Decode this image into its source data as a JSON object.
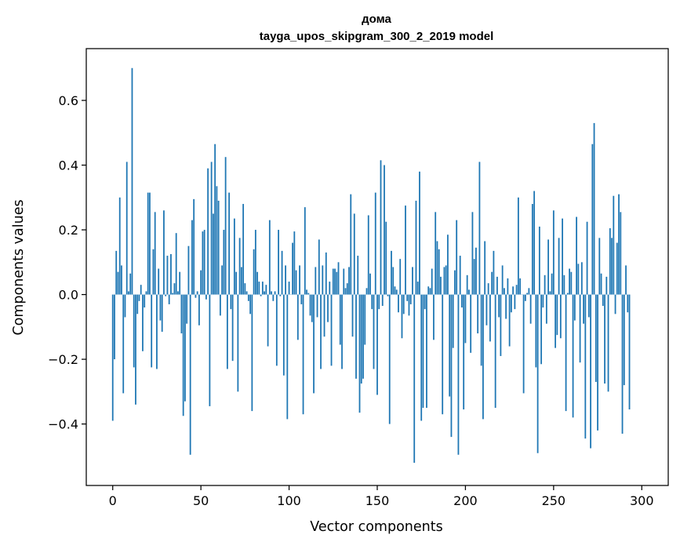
{
  "chart_data": {
    "type": "bar",
    "title": "дома",
    "subtitle": "tayga_upos_skipgram_300_2_2019 model",
    "xlabel": "Vector components",
    "ylabel": "Components values",
    "xlim": [
      -15,
      315
    ],
    "ylim": [
      -0.59,
      0.76
    ],
    "xticks": [
      0,
      50,
      100,
      150,
      200,
      250,
      300
    ],
    "yticks": [
      -0.4,
      -0.2,
      0.0,
      0.2,
      0.4,
      0.6
    ],
    "ytick_labels": [
      "−0.4",
      "−0.2",
      "0.0",
      "0.2",
      "0.4",
      "0.6"
    ],
    "xtick_labels": [
      "0",
      "50",
      "100",
      "150",
      "200",
      "250",
      "300"
    ],
    "bar_color": "#1f77b4",
    "grid": false,
    "x_start": 0,
    "values": [
      -0.39,
      -0.2,
      0.135,
      0.07,
      0.3,
      0.09,
      -0.305,
      -0.07,
      0.41,
      0.01,
      0.065,
      0.7,
      -0.225,
      -0.34,
      -0.06,
      -0.02,
      0.03,
      -0.175,
      -0.04,
      0.01,
      0.315,
      0.315,
      -0.225,
      0.14,
      0.255,
      -0.23,
      0.08,
      -0.08,
      -0.115,
      0.26,
      -0.005,
      0.12,
      -0.03,
      0.125,
      0.005,
      0.035,
      0.19,
      0.01,
      0.07,
      -0.12,
      -0.375,
      -0.33,
      -0.09,
      0.15,
      -0.495,
      0.23,
      0.295,
      -0.01,
      0.01,
      -0.095,
      0.075,
      0.195,
      0.2,
      -0.015,
      0.39,
      -0.345,
      0.41,
      0.25,
      0.465,
      0.335,
      0.29,
      -0.065,
      0.09,
      0.2,
      0.425,
      -0.23,
      0.315,
      -0.045,
      -0.205,
      0.235,
      0.07,
      -0.3,
      0.175,
      0.085,
      0.28,
      0.035,
      0.01,
      -0.02,
      -0.06,
      -0.36,
      0.14,
      0.2,
      0.07,
      0.04,
      -0.005,
      0.04,
      0.01,
      0.03,
      -0.16,
      0.23,
      0.01,
      -0.02,
      0.01,
      -0.22,
      0.2,
      -0.005,
      0.135,
      -0.25,
      0.09,
      -0.385,
      0.04,
      0.0,
      0.16,
      0.195,
      0.075,
      -0.14,
      0.09,
      -0.03,
      -0.37,
      0.27,
      0.015,
      0.005,
      -0.065,
      -0.085,
      -0.305,
      0.085,
      -0.07,
      0.17,
      -0.23,
      0.09,
      -0.13,
      0.13,
      -0.085,
      0.04,
      -0.22,
      0.08,
      0.08,
      0.07,
      0.1,
      -0.155,
      -0.23,
      0.08,
      0.02,
      0.035,
      0.085,
      0.31,
      -0.13,
      0.25,
      -0.26,
      0.12,
      -0.365,
      -0.275,
      -0.26,
      -0.155,
      0.02,
      0.245,
      0.065,
      -0.045,
      -0.23,
      0.315,
      -0.31,
      -0.045,
      0.415,
      -0.035,
      0.4,
      0.225,
      -0.005,
      -0.4,
      0.135,
      0.085,
      0.025,
      0.015,
      -0.055,
      0.11,
      -0.135,
      -0.06,
      0.275,
      -0.02,
      -0.065,
      -0.03,
      0.085,
      -0.52,
      0.29,
      0.04,
      0.38,
      -0.39,
      -0.35,
      -0.045,
      -0.35,
      0.025,
      0.02,
      0.08,
      -0.14,
      0.255,
      0.165,
      0.14,
      0.055,
      -0.37,
      0.085,
      0.09,
      0.185,
      -0.315,
      -0.44,
      -0.165,
      0.075,
      0.23,
      -0.495,
      0.12,
      -0.04,
      -0.355,
      -0.15,
      0.06,
      0.015,
      -0.18,
      0.255,
      0.11,
      0.145,
      -0.12,
      0.41,
      -0.22,
      -0.385,
      0.165,
      -0.095,
      0.035,
      -0.145,
      0.07,
      0.135,
      -0.35,
      0.055,
      -0.07,
      -0.19,
      0.09,
      0.02,
      -0.075,
      0.05,
      -0.16,
      -0.055,
      0.025,
      -0.045,
      0.03,
      0.3,
      0.05,
      0.0,
      -0.305,
      -0.02,
      0.005,
      0.02,
      -0.09,
      0.28,
      0.32,
      -0.225,
      -0.49,
      0.21,
      -0.215,
      -0.04,
      0.06,
      -0.09,
      0.17,
      0.01,
      0.065,
      0.26,
      -0.165,
      -0.125,
      0.175,
      -0.135,
      0.235,
      0.06,
      -0.36,
      0.005,
      0.08,
      0.07,
      -0.38,
      -0.08,
      0.24,
      0.095,
      -0.21,
      0.1,
      -0.09,
      -0.445,
      0.225,
      -0.07,
      -0.475,
      0.465,
      0.53,
      -0.27,
      -0.42,
      0.175,
      0.065,
      -0.035,
      -0.275,
      0.055,
      -0.3,
      0.205,
      0.175,
      0.305,
      -0.06,
      0.16,
      0.31,
      0.255,
      -0.43,
      -0.28,
      0.09,
      -0.055,
      -0.355
    ]
  }
}
